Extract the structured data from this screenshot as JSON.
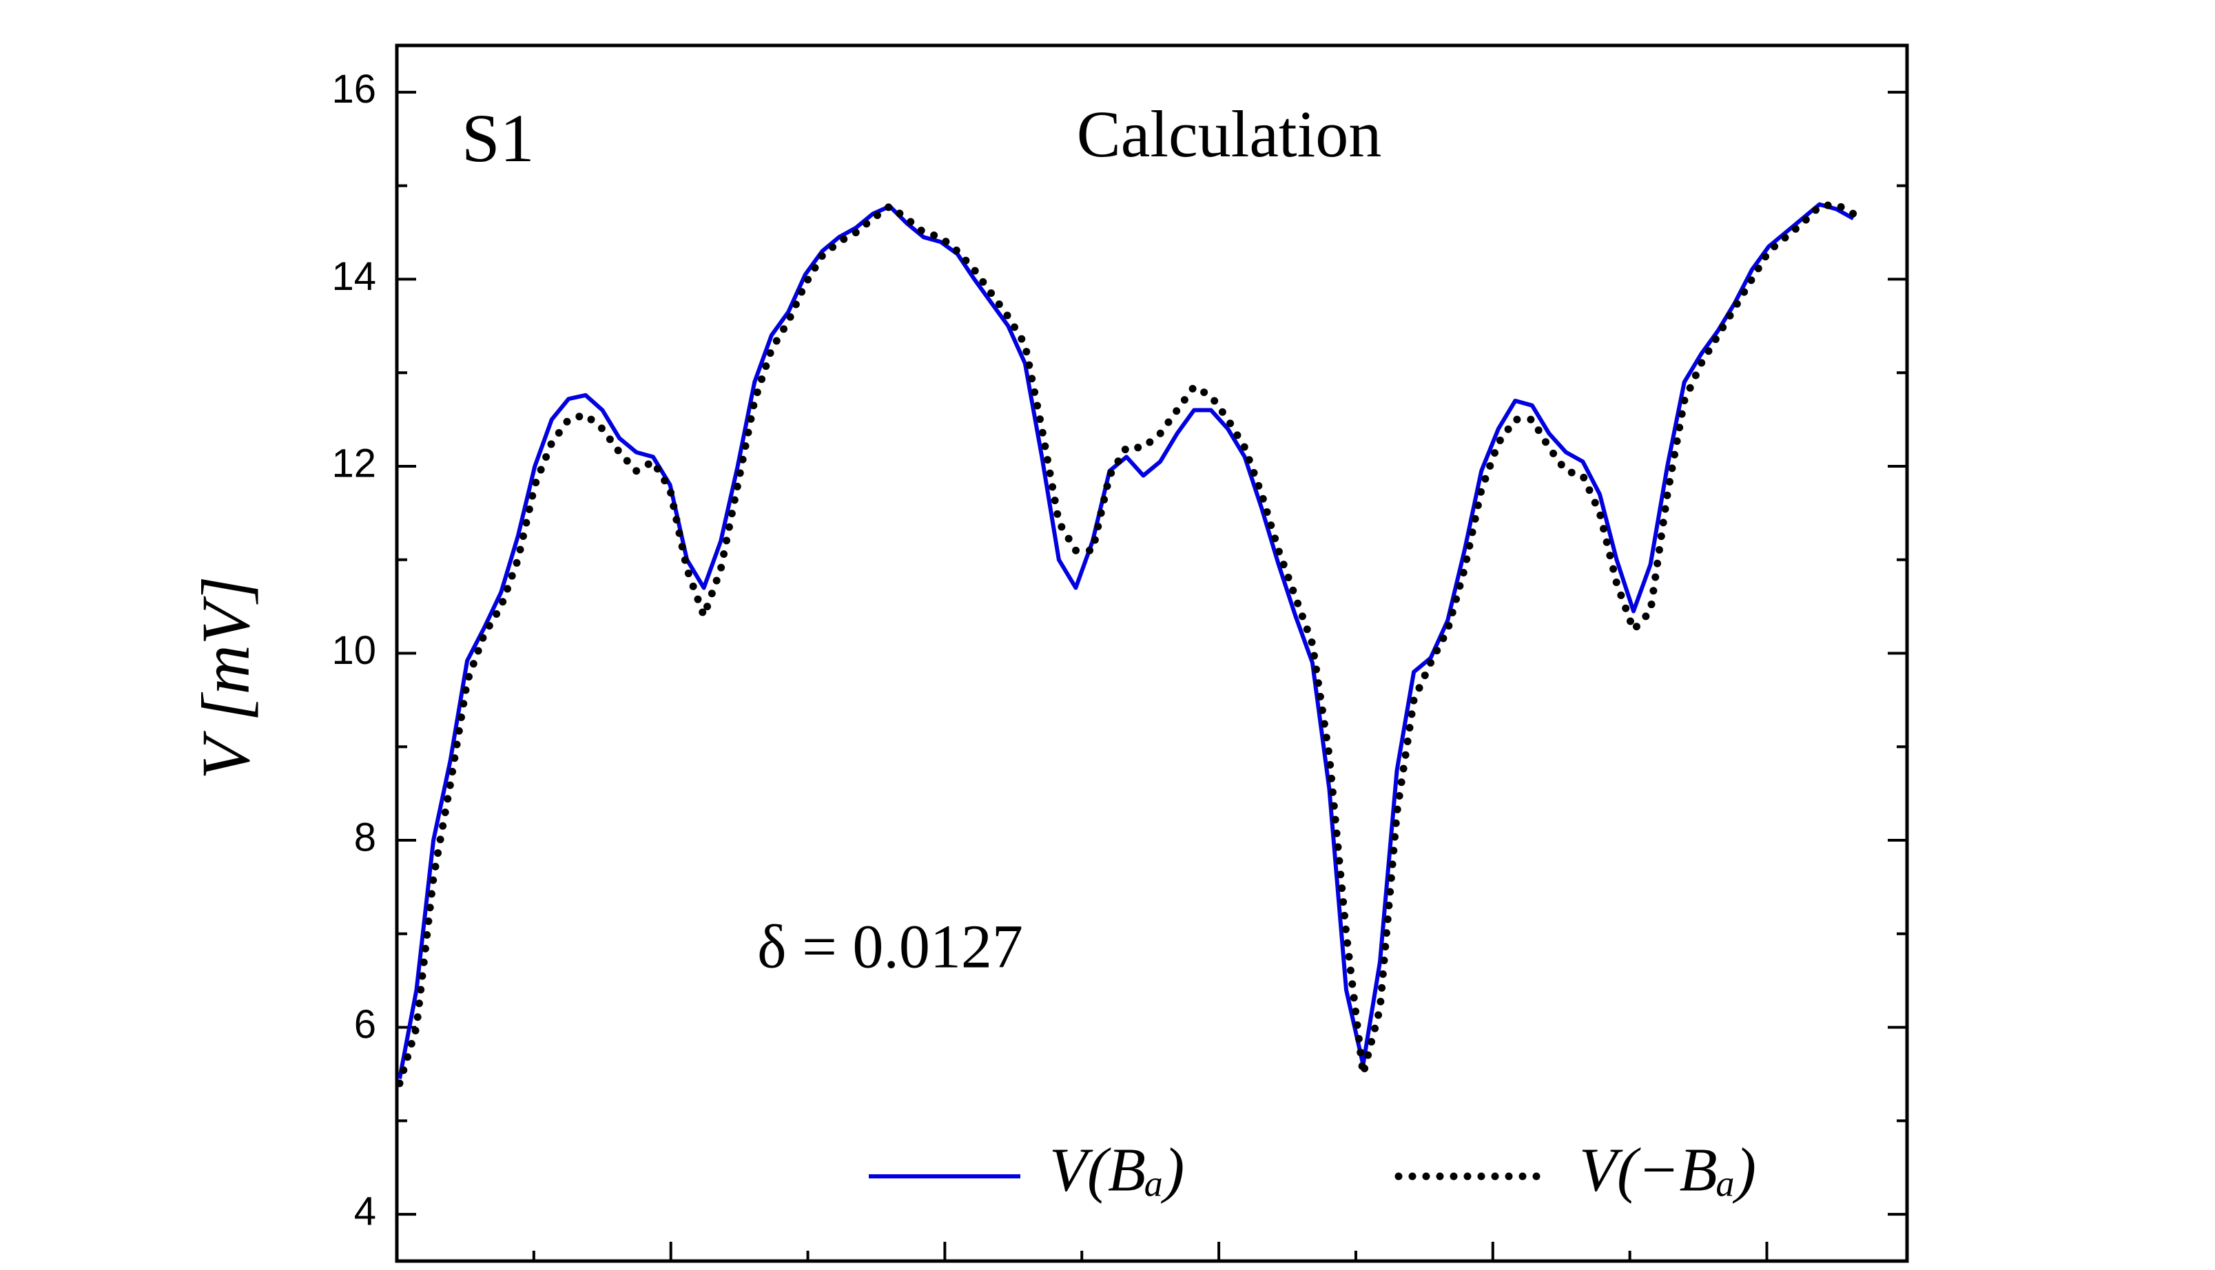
{
  "chart_data": {
    "type": "line",
    "ylabel": "V [mV]",
    "annotations": [
      "S1",
      "Calculation",
      "δ = 0.0127"
    ],
    "ylim": [
      3.5,
      16.5
    ],
    "yticks": [
      4,
      6,
      8,
      10,
      12,
      14,
      16
    ],
    "series": [
      {
        "name": "V(Bₐ)",
        "color": "#0000e0",
        "style": "solid",
        "values": [
          5.45,
          6.4,
          8.0,
          8.85,
          9.92,
          10.27,
          10.65,
          11.25,
          12.0,
          12.5,
          12.72,
          12.76,
          12.6,
          12.3,
          12.15,
          12.1,
          11.8,
          11.0,
          10.7,
          11.2,
          12.0,
          12.9,
          13.4,
          13.65,
          14.05,
          14.3,
          14.45,
          14.55,
          14.7,
          14.78,
          14.6,
          14.45,
          14.4,
          14.27,
          14.0,
          13.75,
          13.5,
          13.1,
          12.1,
          11.0,
          10.7,
          11.2,
          11.95,
          12.1,
          11.9,
          12.05,
          12.35,
          12.6,
          12.6,
          12.4,
          12.1,
          11.55,
          10.95,
          10.4,
          9.9,
          8.55,
          6.4,
          5.6,
          6.7,
          8.75,
          9.8,
          9.95,
          10.35,
          11.1,
          11.95,
          12.4,
          12.7,
          12.65,
          12.35,
          12.15,
          12.05,
          11.7,
          11.0,
          10.45,
          10.95,
          12.0,
          12.9,
          13.2,
          13.45,
          13.75,
          14.1,
          14.35,
          14.5,
          14.65,
          14.8,
          14.75,
          14.65
        ]
      },
      {
        "name": "V(−Bₐ)",
        "color": "#000000",
        "style": "dotted",
        "values": [
          5.4,
          6.0,
          7.6,
          8.6,
          9.7,
          10.2,
          10.5,
          11.0,
          11.8,
          12.25,
          12.5,
          12.55,
          12.4,
          12.15,
          11.95,
          12.05,
          11.75,
          10.9,
          10.4,
          10.9,
          11.8,
          12.7,
          13.25,
          13.55,
          13.95,
          14.25,
          14.4,
          14.5,
          14.65,
          14.78,
          14.65,
          14.5,
          14.45,
          14.3,
          14.1,
          13.85,
          13.6,
          13.3,
          12.4,
          11.4,
          11.1,
          11.1,
          11.9,
          12.2,
          12.2,
          12.35,
          12.6,
          12.85,
          12.75,
          12.5,
          12.2,
          11.7,
          11.1,
          10.6,
          10.1,
          8.9,
          7.0,
          5.5,
          6.2,
          8.3,
          9.5,
          9.9,
          10.25,
          10.9,
          11.75,
          12.25,
          12.5,
          12.5,
          12.2,
          11.95,
          11.9,
          11.5,
          10.75,
          10.25,
          10.45,
          11.7,
          12.7,
          13.1,
          13.4,
          13.7,
          14.0,
          14.3,
          14.45,
          14.6,
          14.78,
          14.8,
          14.7
        ]
      }
    ],
    "legend": "lower right"
  }
}
